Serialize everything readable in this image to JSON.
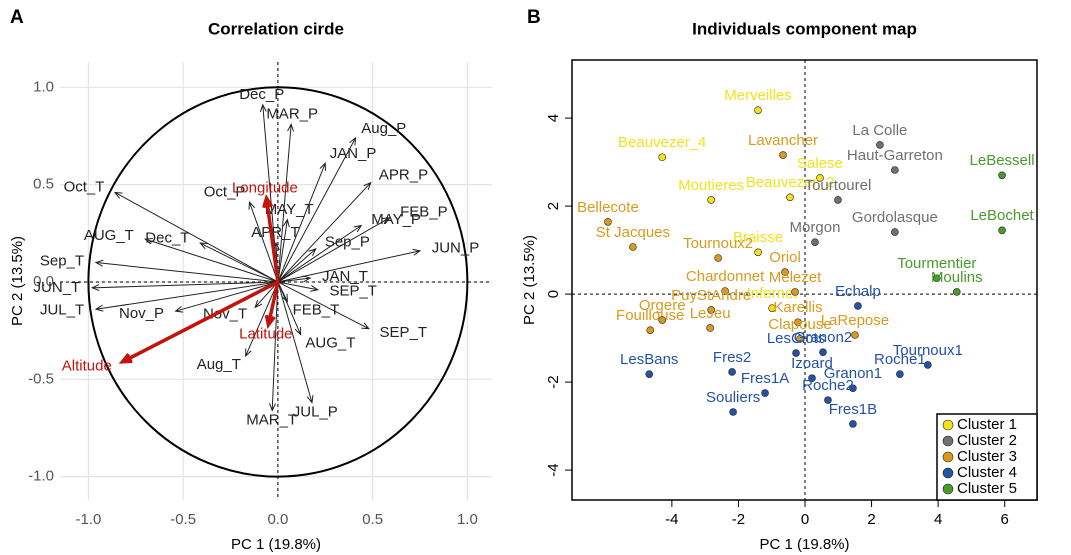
{
  "chart_data": [
    {
      "type": "vector",
      "panel": "A",
      "title": "Correlation cirde",
      "xlabel": "PC 1 (19.8%)",
      "ylabel": "PC 2 (13.5%)",
      "xlim": [
        -1.15,
        1.13
      ],
      "ylim": [
        -1.12,
        1.13
      ],
      "xticks": [
        {
          "value": -1,
          "label": "-1.0"
        },
        {
          "value": -0.5,
          "label": "-0.5"
        },
        {
          "value": 0,
          "label": "0.0"
        },
        {
          "value": 0.5,
          "label": "0.5"
        },
        {
          "value": 1,
          "label": "1.0"
        }
      ],
      "yticks": [
        {
          "value": -1,
          "label": "-1.0"
        },
        {
          "value": -0.5,
          "label": "-0.5"
        },
        {
          "value": 0,
          "label": "0.0"
        },
        {
          "value": 0.5,
          "label": "0.5"
        },
        {
          "value": 1,
          "label": "1.0"
        }
      ],
      "grid": true,
      "series": [
        {
          "color": "#222222",
          "labels": [
            "Dec_P",
            "MAR_P",
            "Aug_P",
            "JAN_P",
            "APR_P",
            "FEB_P",
            "MAY_P",
            "JUN_P",
            "Sep_P",
            "MAY_T",
            "APR_T",
            "Oct_P",
            "Oct_T",
            "Dec_T",
            "AUG_T",
            "Sep_T",
            "JUN_T",
            "JUL_T",
            "Nov_P",
            "Nov_T",
            "JAN_T",
            "SEP_T",
            "FEB_T",
            "AUG_T",
            "SEP_T",
            "Aug_T",
            "MAR_T",
            "JUL_P"
          ],
          "x": [
            -0.08,
            0.07,
            0.41,
            0.25,
            0.49,
            0.59,
            0.44,
            0.75,
            0.2,
            0.05,
            -0.01,
            -0.15,
            -0.86,
            -0.41,
            -0.7,
            -0.96,
            -0.98,
            -0.96,
            -0.54,
            -0.12,
            0.17,
            0.21,
            0.05,
            0.12,
            0.48,
            -0.17,
            -0.03,
            0.18
          ],
          "values": [
            0.91,
            0.81,
            0.74,
            0.61,
            0.51,
            0.33,
            0.29,
            0.16,
            0.17,
            0.32,
            0.2,
            0.41,
            0.46,
            0.2,
            0.22,
            0.1,
            -0.03,
            -0.14,
            -0.15,
            -0.13,
            0.02,
            -0.04,
            -0.1,
            -0.27,
            -0.24,
            -0.38,
            -0.66,
            -0.62
          ]
        },
        {
          "color": "#c0140c",
          "labels": [
            "Longitude",
            "Latitude",
            "Altitude"
          ],
          "x": [
            -0.06,
            -0.05,
            -0.82
          ],
          "values": [
            0.43,
            -0.22,
            -0.41
          ]
        }
      ]
    },
    {
      "type": "scatter",
      "panel": "B",
      "title": "Individuals component map",
      "xlabel": "PC 1 (19.8%)",
      "ylabel": "PC 2 (13.5%)",
      "xlim": [
        -7,
        6.97
      ],
      "ylim": [
        -4.68,
        5.32
      ],
      "xticks": [
        -4,
        -2,
        0,
        2,
        4,
        6
      ],
      "yticks": [
        -4,
        -2,
        0,
        2,
        4
      ],
      "grid": false,
      "legend": "lower right",
      "series": [
        {
          "name": "Cluster 1",
          "color": "#f2e21c",
          "labels": [
            "Merveilles",
            "Beauvezer_4",
            "Salese",
            "Moutieres",
            "Beauvezer_2",
            "Braisse",
            "Infernet"
          ],
          "x": [
            -1.41,
            -4.29,
            0.45,
            -2.82,
            -0.45,
            -1.41,
            -0.99
          ],
          "values": [
            4.18,
            3.11,
            2.64,
            2.14,
            2.2,
            0.95,
            -0.32
          ]
        },
        {
          "name": "Cluster 2",
          "color": "#707070",
          "labels": [
            "La Colle",
            "Haut-Garreton",
            "Tourtourel",
            "Morgon",
            "Gordolasque"
          ],
          "x": [
            2.25,
            2.7,
            0.99,
            0.3,
            2.7
          ],
          "values": [
            3.39,
            2.82,
            2.14,
            1.18,
            1.41
          ]
        },
        {
          "name": "Cluster 3",
          "color": "#d99a1e",
          "labels": [
            "Lavancher",
            "Bellecote",
            "Tournoux2",
            "St Jacques",
            "Oriol",
            "Chardonnet",
            "Melezet",
            "PuyStAndre",
            "Karellis",
            "Fouillouse",
            "Clapouse",
            "LaRepose",
            "LeJeu",
            "Orgere"
          ],
          "x": [
            -0.66,
            -5.92,
            -2.61,
            -5.17,
            -0.6,
            -2.4,
            -0.3,
            -2.82,
            -0.21,
            -4.65,
            -0.15,
            1.5,
            -2.85,
            -4.29
          ],
          "values": [
            3.16,
            1.64,
            0.82,
            1.07,
            0.5,
            0.07,
            0.05,
            -0.36,
            -0.64,
            -0.82,
            -1.02,
            -0.93,
            -0.77,
            -0.59
          ]
        },
        {
          "name": "Cluster 4",
          "color": "#2453a6",
          "labels": [
            "Echalp",
            "Granon2",
            "LesClots",
            "Tournoux1",
            "Izoard",
            "Roche1",
            "Fres2",
            "LesBans",
            "Fres1A",
            "Granon1",
            "Roche2",
            "Souliers",
            "Fres1B"
          ],
          "x": [
            1.59,
            0.54,
            -0.27,
            3.69,
            0.21,
            2.85,
            -2.19,
            -4.68,
            -1.2,
            1.44,
            0.69,
            -2.16,
            1.44
          ],
          "values": [
            -0.27,
            -1.32,
            -1.34,
            -1.61,
            -1.91,
            -1.82,
            -1.77,
            -1.82,
            -2.25,
            -2.14,
            -2.41,
            -2.68,
            -2.95
          ]
        },
        {
          "name": "Cluster 5",
          "color": "#4a9a2c",
          "labels": [
            "LeBessell",
            "LeBochet",
            "Tourmentier",
            "Moulins"
          ],
          "x": [
            5.92,
            5.92,
            3.96,
            4.56
          ],
          "values": [
            2.7,
            1.45,
            0.36,
            0.05
          ]
        }
      ]
    }
  ]
}
